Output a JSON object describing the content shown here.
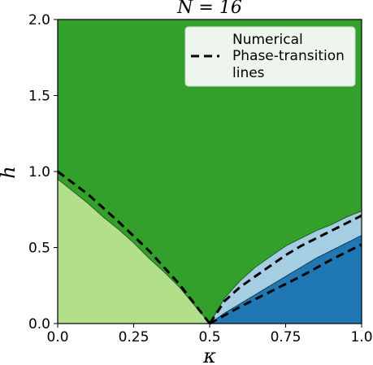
{
  "chart_data": {
    "type": "area",
    "title": "N = 16",
    "xlabel": "κ",
    "ylabel": "h",
    "xlim": [
      0.0,
      1.0
    ],
    "ylim": [
      0.0,
      2.0
    ],
    "xticks": [
      "0.0",
      "0.25",
      "0.5",
      "0.75",
      "1.0"
    ],
    "yticks": [
      "0.0",
      "0.5",
      "1.0",
      "1.5",
      "2.0"
    ],
    "legend": {
      "position": "top-right",
      "entries": [
        "Numerical",
        "Phase-transition",
        "lines"
      ]
    },
    "colors": {
      "paramagnetic": "#33a02c",
      "left_ordered": "#b2df8a",
      "right_ordered_light": "#a6cee3",
      "right_ordered_dark": "#1f78b4",
      "transition_line": "#000000"
    },
    "regions": {
      "left_boundary": {
        "kappa": [
          0.0,
          0.05,
          0.1,
          0.15,
          0.2,
          0.25,
          0.3,
          0.35,
          0.4,
          0.45,
          0.5
        ],
        "h": [
          0.95,
          0.87,
          0.79,
          0.7,
          0.62,
          0.53,
          0.43,
          0.34,
          0.24,
          0.12,
          0.0
        ]
      },
      "upper_right_boundary": {
        "kappa": [
          0.5,
          0.55,
          0.6,
          0.65,
          0.7,
          0.75,
          0.8,
          0.85,
          0.9,
          0.95,
          1.0
        ],
        "h": [
          0.0,
          0.17,
          0.28,
          0.37,
          0.44,
          0.51,
          0.56,
          0.61,
          0.65,
          0.7,
          0.74
        ]
      },
      "lower_right_boundary": {
        "kappa": [
          0.5,
          0.55,
          0.6,
          0.65,
          0.7,
          0.75,
          0.8,
          0.85,
          0.9,
          0.95,
          1.0
        ],
        "h": [
          0.0,
          0.07,
          0.13,
          0.19,
          0.25,
          0.31,
          0.37,
          0.43,
          0.48,
          0.53,
          0.58
        ]
      }
    },
    "series": [
      {
        "kappa": [
          0.0,
          0.1,
          0.2,
          0.3,
          0.4,
          0.5
        ],
        "h": [
          1.0,
          0.85,
          0.67,
          0.48,
          0.26,
          0.0
        ]
      },
      {
        "kappa": [
          0.5,
          0.55,
          0.6,
          0.65,
          0.7,
          0.75,
          0.8,
          0.85,
          0.9,
          0.95,
          1.0
        ],
        "h": [
          0.0,
          0.15,
          0.24,
          0.31,
          0.38,
          0.45,
          0.51,
          0.56,
          0.61,
          0.66,
          0.71
        ]
      },
      {
        "kappa": [
          0.5,
          0.6,
          0.7,
          0.8,
          0.9,
          1.0
        ],
        "h": [
          0.0,
          0.11,
          0.21,
          0.31,
          0.42,
          0.52
        ]
      }
    ]
  }
}
